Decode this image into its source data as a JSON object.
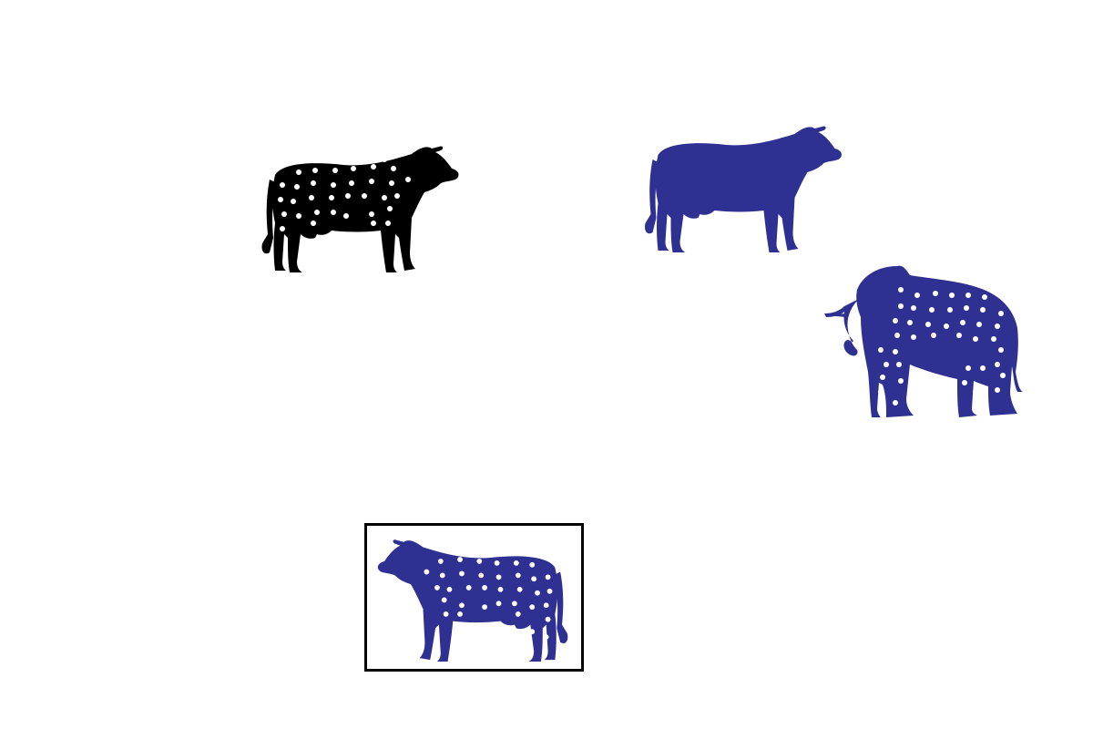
{
  "scene": {
    "figures": [
      {
        "id": "fig-1",
        "animal": "cow",
        "color": "#000000",
        "spotted": true,
        "facing": "right",
        "selected": false
      },
      {
        "id": "fig-2",
        "animal": "cow",
        "color": "#2e3192",
        "spotted": false,
        "facing": "right",
        "selected": false
      },
      {
        "id": "fig-3",
        "animal": "elephant",
        "color": "#2e3192",
        "spotted": true,
        "facing": "left",
        "selected": false
      },
      {
        "id": "fig-4",
        "animal": "cow",
        "color": "#2e3192",
        "spotted": true,
        "facing": "left",
        "selected": true
      }
    ],
    "spot_color": "#ffffff",
    "selection_border_color": "#000000"
  }
}
